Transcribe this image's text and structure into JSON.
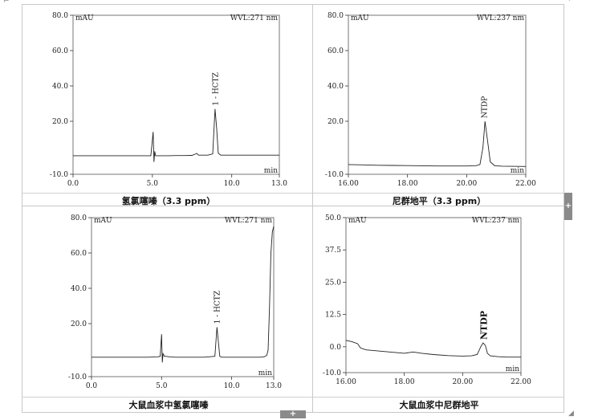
{
  "chart_data": [
    {
      "type": "line",
      "unit_y": "mAU",
      "wavelength": "WVL:271 nm",
      "xlabel": "min",
      "ylim": [
        -10,
        80
      ],
      "yticks": [
        -10,
        20,
        40,
        60,
        80
      ],
      "ytick_labels": [
        "-10.0",
        "20.0",
        "40.0",
        "60.0",
        "80.0"
      ],
      "xlim": [
        0,
        13
      ],
      "xticks": [
        0,
        5,
        10,
        13
      ],
      "xtick_labels": [
        "0.0",
        "5.0",
        "10.0",
        "13.0"
      ],
      "caption": "氢氯噻嗪（3.3 ppm）",
      "peak_label": "1 - HCTZ",
      "peak_label_x": 9.0,
      "series": [
        {
          "x": [
            0,
            0.5,
            1,
            1.5,
            2,
            2.5,
            3,
            3.5,
            4,
            4.5,
            4.9,
            5.05,
            5.1,
            5.15,
            5.2,
            5.3,
            5.5,
            6,
            6.5,
            7,
            7.5,
            7.8,
            7.9,
            8.0,
            8.2,
            8.5,
            8.8,
            8.95,
            9.05,
            9.15,
            9.3,
            9.6,
            10,
            10.5,
            11,
            11.5,
            12,
            12.5,
            13
          ],
          "y": [
            0.5,
            0.5,
            0.5,
            0.5,
            0.5,
            0.5,
            0.5,
            0.5,
            0.5,
            0.5,
            0.5,
            14,
            -3,
            3,
            0.5,
            0.5,
            0.5,
            0.5,
            0.6,
            0.6,
            0.7,
            1.8,
            0.8,
            0.8,
            0.8,
            0.8,
            1.5,
            27,
            16,
            2,
            0.8,
            0.8,
            0.8,
            0.8,
            0.8,
            0.8,
            0.8,
            0.8,
            0.8
          ]
        }
      ]
    },
    {
      "type": "line",
      "unit_y": "mAU",
      "wavelength": "WVL:237 nm",
      "xlabel": "min",
      "ylim": [
        -10,
        80
      ],
      "yticks": [
        -10,
        20,
        40,
        60,
        80
      ],
      "ytick_labels": [
        "-10.0",
        "20.0",
        "40.0",
        "60.0",
        "80.0"
      ],
      "xlim": [
        16,
        22
      ],
      "xticks": [
        16,
        18,
        20,
        22
      ],
      "xtick_labels": [
        "16.00",
        "18.00",
        "20.00",
        "22.00"
      ],
      "caption": "尼群地平（3.3 ppm）",
      "peak_label": "NTDP",
      "peak_label_x": 20.62,
      "series": [
        {
          "x": [
            16,
            16.5,
            17,
            17.5,
            18,
            18.5,
            19,
            19.5,
            20,
            20.3,
            20.45,
            20.55,
            20.62,
            20.7,
            20.8,
            20.95,
            21.2,
            21.5,
            22
          ],
          "y": [
            -4.5,
            -4.7,
            -4.9,
            -5.0,
            -5.1,
            -5.2,
            -5.3,
            -5.3,
            -5.3,
            -5.2,
            -4.5,
            5,
            20,
            10,
            -3,
            -5.2,
            -5.4,
            -5.5,
            -5.6
          ]
        }
      ]
    },
    {
      "type": "line",
      "unit_y": "mAU",
      "wavelength": "WVL:271 nm",
      "xlabel": "min",
      "ylim": [
        -10,
        80
      ],
      "yticks": [
        -10,
        20,
        40,
        60,
        80
      ],
      "ytick_labels": [
        "-10.0",
        "20.0",
        "40.0",
        "60.0",
        "80.0"
      ],
      "xlim": [
        0,
        13
      ],
      "xticks": [
        0,
        5,
        10,
        13
      ],
      "xtick_labels": [
        "0.0",
        "5.0",
        "10.0",
        "13.0"
      ],
      "caption": "大鼠血浆中氢氯噻嗪",
      "peak_label": "1 - HCTZ",
      "peak_label_x": 9.0,
      "series": [
        {
          "x": [
            0,
            1,
            2,
            3,
            4,
            4.7,
            4.9,
            5.0,
            5.05,
            5.1,
            5.2,
            5.3,
            5.6,
            6,
            7,
            8,
            8.8,
            8.95,
            9.05,
            9.15,
            9.3,
            10,
            11,
            12,
            12.3,
            12.5,
            12.6,
            12.7,
            12.8,
            12.9,
            13
          ],
          "y": [
            1,
            1,
            1,
            1,
            1,
            1.2,
            1.5,
            14,
            -2,
            3,
            1.5,
            1.5,
            1.2,
            1,
            1,
            1,
            1.5,
            18,
            10,
            1.5,
            1,
            1,
            1,
            1,
            1.2,
            2,
            5,
            30,
            60,
            72,
            75
          ]
        }
      ]
    },
    {
      "type": "line",
      "unit_y": "mAU",
      "wavelength": "WVL:237 nm",
      "xlabel": "min",
      "ylim": [
        -10,
        50
      ],
      "yticks": [
        -10,
        0,
        12.5,
        25,
        37.5,
        50
      ],
      "ytick_labels": [
        "-10.0",
        "0.0",
        "12.5",
        "25.0",
        "37.5",
        "50.0"
      ],
      "xlim": [
        16,
        22
      ],
      "xticks": [
        16,
        18,
        20,
        22
      ],
      "xtick_labels": [
        "16.00",
        "18.00",
        "20.00",
        "22.00"
      ],
      "caption": "大鼠血浆中尼群地平",
      "peak_label": "NTDP",
      "peak_label_x": 20.75,
      "series": [
        {
          "x": [
            16,
            16.2,
            16.4,
            16.5,
            16.7,
            17,
            17.5,
            18,
            18.3,
            18.6,
            19,
            19.5,
            20,
            20.3,
            20.5,
            20.62,
            20.7,
            20.78,
            20.85,
            20.95,
            21.2,
            21.5,
            22
          ],
          "y": [
            2.5,
            2.0,
            1.2,
            -0.5,
            -1.2,
            -1.5,
            -2,
            -2.5,
            -2,
            -2.5,
            -3,
            -3.4,
            -3.6,
            -3.5,
            -3,
            0,
            1.5,
            0.5,
            -2.5,
            -3.5,
            -3.8,
            -4,
            -4
          ]
        }
      ]
    }
  ]
}
